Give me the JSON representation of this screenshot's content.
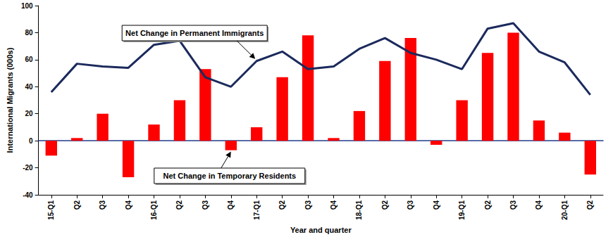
{
  "chart_data": {
    "type": "bar",
    "x_label": "Year and quarter",
    "y_label": "International Migrants (000s)",
    "categories": [
      "15-Q1",
      "Q2",
      "Q3",
      "Q4",
      "16-Q1",
      "Q2",
      "Q3",
      "Q4",
      "17-Q1",
      "Q2",
      "Q3",
      "Q4",
      "18-Q1",
      "Q2",
      "Q3",
      "Q4",
      "19-Q1",
      "Q2",
      "Q3",
      "Q4",
      "20-Q1",
      "Q2"
    ],
    "series": [
      {
        "name": "Net Change in Temporary Residents",
        "type": "bar",
        "color": "#ff0000",
        "values": [
          -11,
          2,
          20,
          -27,
          12,
          30,
          53,
          -7,
          10,
          47,
          78,
          2,
          22,
          59,
          76,
          -3,
          30,
          65,
          80,
          15,
          6,
          -25
        ]
      },
      {
        "name": "Net Change in Permanent Immigrants",
        "type": "line",
        "color": "#1b2a5c",
        "values": [
          36,
          57,
          55,
          54,
          71,
          74,
          47,
          40,
          59,
          66,
          53,
          55,
          68,
          76,
          65,
          60,
          53,
          83,
          87,
          66,
          58,
          34
        ]
      }
    ],
    "ylim": [
      -40,
      100
    ],
    "yticks": [
      -40,
      -20,
      0,
      20,
      40,
      60,
      80,
      100
    ],
    "grid": false
  }
}
